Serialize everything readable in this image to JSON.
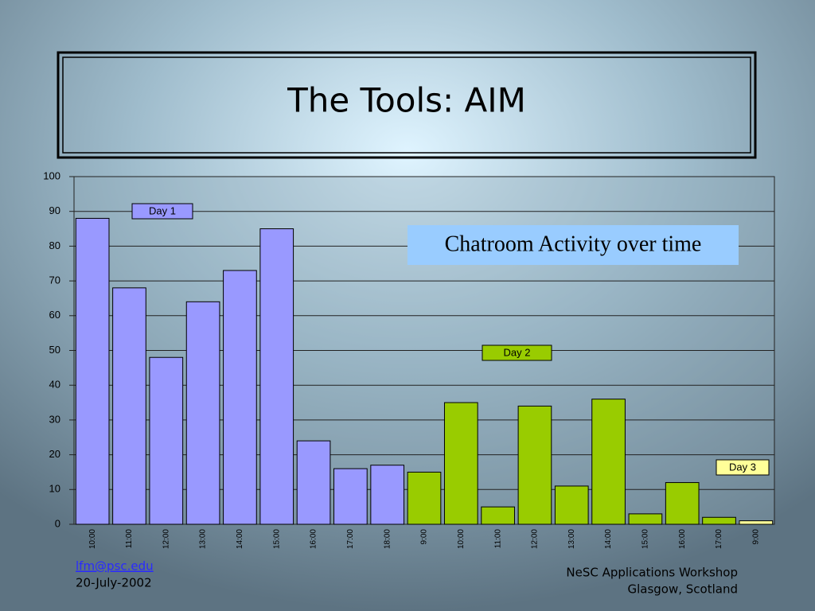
{
  "slide_title": "The Tools: AIM",
  "footer": {
    "email": "lfm@psc.edu",
    "date": "20-July-2002",
    "event": "NeSC Applications Workshop",
    "place": "Glasgow, Scotland"
  },
  "chart_data": {
    "type": "bar",
    "annotation": "Chatroom Activity over time",
    "categories": [
      "10:00",
      "11:00",
      "12:00",
      "13:00",
      "14:00",
      "15:00",
      "16:00",
      "17:00",
      "18:00",
      "9:00",
      "10:00",
      "11:00",
      "12:00",
      "13:00",
      "14:00",
      "15:00",
      "16:00",
      "17:00",
      "9:00"
    ],
    "series": [
      {
        "name": "Day 1",
        "color": "#9999ff",
        "values": [
          88,
          68,
          48,
          64,
          73,
          85,
          24,
          16,
          17,
          null,
          null,
          null,
          null,
          null,
          null,
          null,
          null,
          null,
          null
        ]
      },
      {
        "name": "Day 2",
        "color": "#99cc00",
        "values": [
          null,
          null,
          null,
          null,
          null,
          null,
          null,
          null,
          null,
          15,
          35,
          5,
          34,
          11,
          36,
          3,
          12,
          2,
          null
        ]
      },
      {
        "name": "Day 3",
        "color": "#ffff99",
        "values": [
          null,
          null,
          null,
          null,
          null,
          null,
          null,
          null,
          null,
          null,
          null,
          null,
          null,
          null,
          null,
          null,
          null,
          null,
          1
        ]
      }
    ],
    "ylim": [
      0,
      100
    ],
    "yticks": [
      0,
      10,
      20,
      30,
      40,
      50,
      60,
      70,
      80,
      90,
      100
    ],
    "grid": true
  }
}
